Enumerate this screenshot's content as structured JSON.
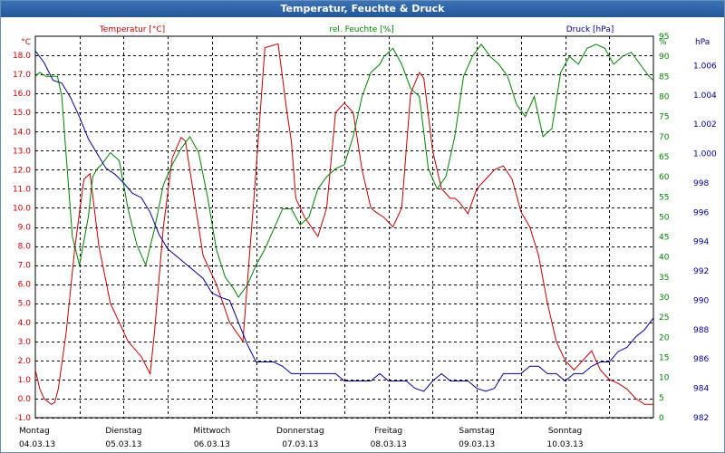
{
  "window": {
    "title": "Temperatur, Feuchte & Druck"
  },
  "chart_data": {
    "type": "line",
    "title": "Temperatur, Feuchte & Druck",
    "grid": true,
    "colors": {
      "temperature": "#c00000",
      "humidity": "#008000",
      "pressure": "#000090",
      "grid": "#000000"
    },
    "axes": {
      "left": {
        "label": "Temperatur [°C]",
        "unit": "°C",
        "min": -1.0,
        "max": 19.0,
        "ticks": [
          "-1.0",
          "0.0",
          "1.0",
          "2.0",
          "3.0",
          "4.0",
          "5.0",
          "6.0",
          "7.0",
          "8.0",
          "9.0",
          "10.0",
          "11.0",
          "12.0",
          "13.0",
          "14.0",
          "15.0",
          "16.0",
          "17.0",
          "18.0"
        ]
      },
      "mid": {
        "label": "rel. Feuchte [%]",
        "unit": "%",
        "min": 0,
        "max": 95,
        "ticks": [
          "0",
          "5",
          "10",
          "15",
          "20",
          "25",
          "30",
          "35",
          "40",
          "45",
          "50",
          "55",
          "60",
          "65",
          "70",
          "75",
          "80",
          "85",
          "90",
          "95"
        ]
      },
      "right": {
        "label": "Druck [hPa]",
        "unit": "hPa",
        "min": 982,
        "max": 1008,
        "ticks": [
          "982",
          "984",
          "986",
          "988",
          "990",
          "992",
          "994",
          "996",
          "998",
          "1.000",
          "1.002",
          "1.004",
          "1.006"
        ]
      }
    },
    "x_labels": [
      {
        "day": "Montag",
        "date": "04.03.13"
      },
      {
        "day": "Dienstag",
        "date": "05.03.13"
      },
      {
        "day": "Mittwoch",
        "date": "06.03.13"
      },
      {
        "day": "Donnerstag",
        "date": "07.03.13"
      },
      {
        "day": "Freitag",
        "date": "08.03.13"
      },
      {
        "day": "Samstag",
        "date": "09.03.13"
      },
      {
        "day": "Sonntag",
        "date": "10.03.13"
      }
    ],
    "x_range_days": [
      0,
      7
    ],
    "series": [
      {
        "name": "Temperatur [°C]",
        "axis": "left",
        "color": "#c00000",
        "x": [
          0,
          0.05,
          0.1,
          0.18,
          0.22,
          0.26,
          0.35,
          0.45,
          0.55,
          0.62,
          0.72,
          0.85,
          0.95,
          1.05,
          1.2,
          1.3,
          1.35,
          1.45,
          1.55,
          1.65,
          1.7,
          1.8,
          1.9,
          2.05,
          2.2,
          2.35,
          2.5,
          2.6,
          2.75,
          2.85,
          2.9,
          2.95,
          3.05,
          3.2,
          3.3,
          3.4,
          3.5,
          3.6,
          3.7,
          3.8,
          3.85,
          3.95,
          4.05,
          4.15,
          4.25,
          4.35,
          4.4,
          4.5,
          4.6,
          4.7,
          4.75,
          4.8,
          4.85,
          4.9,
          5.0,
          5.1,
          5.2,
          5.3,
          5.4,
          5.5,
          5.6,
          5.7,
          5.8,
          5.9,
          6.0,
          6.1,
          6.2,
          6.3,
          6.4,
          6.5,
          6.6,
          6.7,
          6.8,
          6.9,
          7.0
        ],
        "y": [
          1.5,
          0.5,
          0.0,
          -0.3,
          -0.2,
          0.5,
          3.5,
          8.0,
          11.5,
          11.8,
          8.0,
          5.0,
          4.0,
          3.0,
          2.2,
          1.3,
          3.5,
          9.0,
          12.6,
          13.7,
          13.5,
          10.5,
          7.5,
          6.0,
          4.0,
          3.0,
          12.0,
          18.4,
          18.6,
          15.0,
          13.5,
          10.5,
          9.5,
          8.5,
          10.0,
          15.0,
          15.5,
          15.0,
          12.0,
          10.0,
          9.8,
          9.5,
          9.0,
          10.0,
          16.0,
          17.1,
          16.8,
          13.0,
          11.0,
          10.5,
          10.5,
          10.3,
          10.0,
          9.7,
          11.0,
          11.5,
          12.0,
          12.2,
          11.5,
          9.8,
          9.0,
          7.5,
          5.0,
          3.0,
          2.0,
          1.5,
          2.0,
          2.5,
          1.5,
          1.0,
          0.8,
          0.5,
          0.0,
          -0.3,
          -0.3
        ]
      },
      {
        "name": "rel. Feuchte [%]",
        "axis": "mid",
        "color": "#008000",
        "x": [
          0,
          0.05,
          0.12,
          0.25,
          0.3,
          0.35,
          0.42,
          0.5,
          0.6,
          0.65,
          0.7,
          0.75,
          0.85,
          0.95,
          1.05,
          1.15,
          1.25,
          1.35,
          1.45,
          1.55,
          1.65,
          1.75,
          1.85,
          1.95,
          2.05,
          2.15,
          2.25,
          2.3,
          2.4,
          2.5,
          2.6,
          2.7,
          2.8,
          2.9,
          3.0,
          3.1,
          3.2,
          3.3,
          3.4,
          3.5,
          3.6,
          3.7,
          3.8,
          3.9,
          3.95,
          4.05,
          4.15,
          4.25,
          4.35,
          4.45,
          4.55,
          4.65,
          4.75,
          4.85,
          4.95,
          5.05,
          5.15,
          5.25,
          5.35,
          5.45,
          5.55,
          5.65,
          5.75,
          5.85,
          5.95,
          6.05,
          6.15,
          6.25,
          6.35,
          6.45,
          6.55,
          6.65,
          6.75,
          6.85,
          6.95,
          7.0
        ],
        "y": [
          85,
          86,
          85,
          85,
          80,
          65,
          45,
          38,
          50,
          60,
          62,
          63,
          66,
          64,
          52,
          43,
          38,
          47,
          58,
          63,
          67,
          70,
          66,
          55,
          42,
          35,
          32,
          30,
          33,
          38,
          42,
          47,
          52,
          52,
          48,
          50,
          57,
          60,
          62,
          63,
          70,
          80,
          86,
          88,
          90,
          92,
          88,
          82,
          80,
          62,
          57,
          60,
          70,
          85,
          90,
          93,
          90,
          88,
          85,
          78,
          75,
          80,
          70,
          72,
          86,
          90,
          88,
          92,
          93,
          92,
          88,
          90,
          91,
          88,
          85,
          84
        ]
      },
      {
        "name": "Druck [hPa]",
        "axis": "right",
        "color": "#000090",
        "x": [
          0,
          0.1,
          0.2,
          0.3,
          0.4,
          0.5,
          0.6,
          0.7,
          0.8,
          0.9,
          1.0,
          1.1,
          1.2,
          1.3,
          1.4,
          1.5,
          1.6,
          1.7,
          1.8,
          1.9,
          2.0,
          2.1,
          2.2,
          2.3,
          2.4,
          2.5,
          2.6,
          2.7,
          2.8,
          2.9,
          3.0,
          3.1,
          3.2,
          3.3,
          3.4,
          3.5,
          3.6,
          3.7,
          3.8,
          3.9,
          4.0,
          4.1,
          4.2,
          4.3,
          4.4,
          4.5,
          4.6,
          4.7,
          4.8,
          4.9,
          5.0,
          5.1,
          5.2,
          5.3,
          5.4,
          5.5,
          5.6,
          5.7,
          5.8,
          5.9,
          6.0,
          6.1,
          6.2,
          6.3,
          6.4,
          6.5,
          6.6,
          6.7,
          6.8,
          6.9,
          7.0
        ],
        "y": [
          1007.0,
          1006.2,
          1005.0,
          1004.8,
          1003.8,
          1002.5,
          1001.0,
          1000.0,
          999.0,
          998.6,
          998.0,
          997.3,
          997.0,
          996.0,
          994.5,
          993.5,
          993.0,
          992.5,
          992.0,
          991.5,
          990.5,
          990.2,
          990.0,
          988.5,
          987.0,
          985.8,
          985.8,
          985.8,
          985.5,
          985.0,
          985.0,
          985.0,
          985.0,
          985.0,
          985.0,
          984.5,
          984.5,
          984.5,
          984.5,
          985.0,
          984.5,
          984.5,
          984.5,
          984.0,
          983.8,
          984.5,
          985.0,
          984.5,
          984.5,
          984.5,
          984.0,
          983.8,
          984.0,
          985.0,
          985.0,
          985.0,
          985.5,
          985.5,
          985.0,
          985.0,
          984.5,
          985.0,
          985.0,
          985.5,
          985.8,
          985.8,
          986.5,
          986.8,
          987.5,
          988.0,
          988.8
        ]
      }
    ]
  }
}
